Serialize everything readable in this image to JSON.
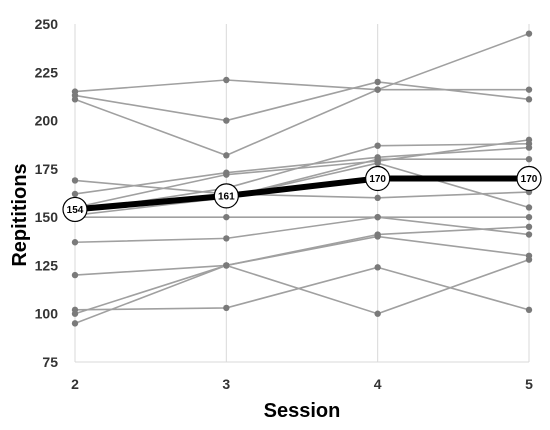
{
  "chart_data": {
    "type": "line",
    "title": "",
    "xlabel": "Session",
    "ylabel": "Repititions",
    "x": [
      2,
      3,
      4,
      5
    ],
    "xlim": [
      2,
      5
    ],
    "ylim": [
      75,
      250
    ],
    "yticks": [
      75,
      100,
      125,
      150,
      175,
      200,
      225,
      250
    ],
    "grid": "vertical",
    "legend": "none",
    "individual_color": "#a0a0a0",
    "marker_color": "#7a7a7a",
    "mean_color": "#000000",
    "series": [
      {
        "values": [
          215,
          221,
          216,
          216
        ]
      },
      {
        "values": [
          213,
          200,
          220,
          211
        ]
      },
      {
        "values": [
          211,
          182,
          216,
          245
        ]
      },
      {
        "values": [
          169,
          162,
          160,
          163
        ]
      },
      {
        "values": [
          162,
          173,
          181,
          186
        ]
      },
      {
        "values": [
          155,
          172,
          179,
          190
        ]
      },
      {
        "values": [
          153,
          165,
          187,
          188
        ]
      },
      {
        "values": [
          151,
          160,
          180,
          180
        ]
      },
      {
        "values": [
          153,
          160,
          178,
          155
        ]
      },
      {
        "values": [
          150,
          150,
          150,
          150
        ]
      },
      {
        "values": [
          137,
          139,
          150,
          141
        ]
      },
      {
        "values": [
          120,
          125,
          141,
          145
        ]
      },
      {
        "values": [
          102,
          103,
          124,
          102
        ]
      },
      {
        "values": [
          100,
          125,
          140,
          130
        ]
      },
      {
        "values": [
          95,
          125,
          100,
          128
        ]
      }
    ],
    "mean": {
      "values": [
        154,
        161,
        170,
        170
      ],
      "labels": [
        "154",
        "161",
        "170",
        "170"
      ]
    }
  }
}
